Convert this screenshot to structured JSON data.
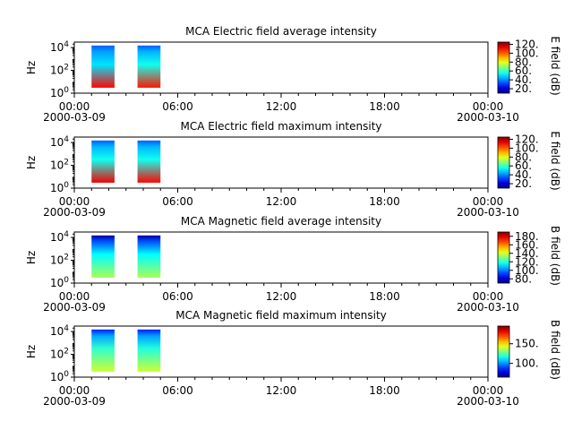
{
  "chart_data": [
    {
      "type": "heatmap",
      "title": "MCA  Electric field average intensity",
      "ylabel": "Hz",
      "yscale": "log",
      "ylim": [
        1,
        30000
      ],
      "yticks": [
        {
          "base": "10",
          "exp": "0"
        },
        {
          "base": "10",
          "exp": "2"
        },
        {
          "base": "10",
          "exp": "4"
        }
      ],
      "xticks": [
        "00:00",
        "06:00",
        "12:00",
        "18:00",
        "00:00"
      ],
      "xdates": [
        "2000-03-09",
        "2000-03-10"
      ],
      "xlim": [
        "2000-03-09 00:00",
        "2000-03-10 00:00"
      ],
      "colorbar": {
        "label": "E field (dB)",
        "ticks": [
          "120.",
          "100.",
          "80.",
          "60.",
          "40.",
          "20."
        ],
        "range": [
          10,
          125
        ],
        "colormap": "rainbow"
      },
      "blocks": [
        {
          "start": "01:00",
          "end": "02:20",
          "low_dB": 110,
          "high_dB": 50,
          "top_dB": 35
        },
        {
          "start": "03:40",
          "end": "05:00",
          "low_dB": 108,
          "high_dB": 55,
          "top_dB": 35
        }
      ]
    },
    {
      "type": "heatmap",
      "title": "MCA  Electric field maximum intensity",
      "ylabel": "Hz",
      "yscale": "log",
      "ylim": [
        1,
        30000
      ],
      "yticks": [
        {
          "base": "10",
          "exp": "0"
        },
        {
          "base": "10",
          "exp": "2"
        },
        {
          "base": "10",
          "exp": "4"
        }
      ],
      "xticks": [
        "00:00",
        "06:00",
        "12:00",
        "18:00",
        "00:00"
      ],
      "xdates": [
        "2000-03-09",
        "2000-03-10"
      ],
      "xlim": [
        "2000-03-09 00:00",
        "2000-03-10 00:00"
      ],
      "colorbar": {
        "label": "E field (dB)",
        "ticks": [
          "120.",
          "100.",
          "80.",
          "60.",
          "40.",
          "20."
        ],
        "range": [
          10,
          125
        ],
        "colormap": "rainbow"
      },
      "blocks": [
        {
          "start": "01:00",
          "end": "02:20",
          "low_dB": 112,
          "high_dB": 55,
          "top_dB": 35
        },
        {
          "start": "03:40",
          "end": "05:00",
          "low_dB": 110,
          "high_dB": 55,
          "top_dB": 35
        }
      ]
    },
    {
      "type": "heatmap",
      "title": "MCA  Magnetic field average intensity",
      "ylabel": "Hz",
      "yscale": "log",
      "ylim": [
        1,
        30000
      ],
      "yticks": [
        {
          "base": "10",
          "exp": "0"
        },
        {
          "base": "10",
          "exp": "2"
        },
        {
          "base": "10",
          "exp": "4"
        }
      ],
      "xticks": [
        "00:00",
        "06:00",
        "12:00",
        "18:00",
        "00:00"
      ],
      "xdates": [
        "2000-03-09",
        "2000-03-10"
      ],
      "xlim": [
        "2000-03-09 00:00",
        "2000-03-10 00:00"
      ],
      "colorbar": {
        "label": "B field (dB)",
        "ticks": [
          "180.",
          "160.",
          "140.",
          "120.",
          "100.",
          "80."
        ],
        "range": [
          70,
          190
        ],
        "colormap": "rainbow"
      },
      "blocks": [
        {
          "start": "01:00",
          "end": "02:20",
          "low_dB": 135,
          "high_dB": 115,
          "top_dB": 75
        },
        {
          "start": "03:40",
          "end": "05:00",
          "low_dB": 135,
          "high_dB": 115,
          "top_dB": 75
        }
      ]
    },
    {
      "type": "heatmap",
      "title": "MCA  Magnetic field maximum intensity",
      "ylabel": "Hz",
      "yscale": "log",
      "ylim": [
        1,
        30000
      ],
      "yticks": [
        {
          "base": "10",
          "exp": "0"
        },
        {
          "base": "10",
          "exp": "2"
        },
        {
          "base": "10",
          "exp": "4"
        }
      ],
      "xticks": [
        "00:00",
        "06:00",
        "12:00",
        "18:00",
        "00:00"
      ],
      "xdates": [
        "2000-03-09",
        "2000-03-10"
      ],
      "xlim": [
        "2000-03-09 00:00",
        "2000-03-10 00:00"
      ],
      "colorbar": {
        "label": "B field (dB)",
        "ticks": [
          "150.",
          "100."
        ],
        "range": [
          65,
          195
        ],
        "colormap": "rainbow"
      },
      "blocks": [
        {
          "start": "01:00",
          "end": "02:20",
          "low_dB": 140,
          "high_dB": 120,
          "top_dB": 85
        },
        {
          "start": "03:40",
          "end": "05:00",
          "low_dB": 140,
          "high_dB": 118,
          "top_dB": 85
        }
      ]
    }
  ]
}
